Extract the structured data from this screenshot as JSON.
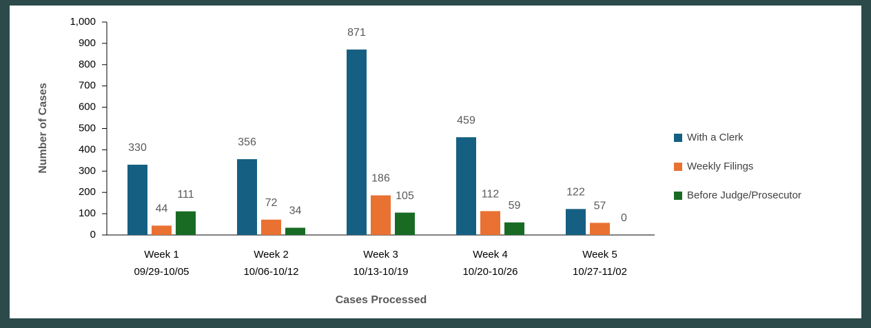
{
  "chart_data": {
    "type": "bar",
    "categories": [
      [
        "Week 1",
        "09/29-10/05"
      ],
      [
        "Week 2",
        "10/06-10/12"
      ],
      [
        "Week 3",
        "10/13-10/19"
      ],
      [
        "Week 4",
        "10/20-10/26"
      ],
      [
        "Week 5",
        "10/27-11/02"
      ]
    ],
    "series": [
      {
        "name": "With a Clerk",
        "color": "#156082",
        "values": [
          330,
          356,
          871,
          459,
          122
        ]
      },
      {
        "name": "Weekly Filings",
        "color": "#e97132",
        "values": [
          44,
          72,
          186,
          112,
          57
        ]
      },
      {
        "name": "Before Judge/Prosecutor",
        "color": "#196b24",
        "values": [
          111,
          34,
          105,
          59,
          0
        ]
      }
    ],
    "y_label": "Number of Cases",
    "x_label": "Cases Processed",
    "ylim": [
      0,
      1000
    ],
    "yticks": [
      0,
      100,
      200,
      300,
      400,
      500,
      600,
      700,
      800,
      900,
      {
        "value": 1000,
        "label": "1,000"
      }
    ],
    "legend": "right"
  }
}
